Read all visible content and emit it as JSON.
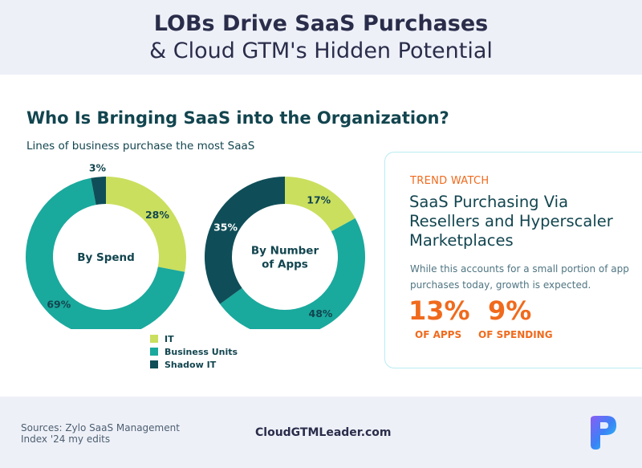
{
  "header": {
    "title_line1": "LOBs Drive SaaS Purchases",
    "title_line2": "& Cloud GTM's Hidden Potential"
  },
  "section": {
    "title": "Who Is Bringing SaaS into the Organization?",
    "subtitle": "Lines of business purchase the most SaaS"
  },
  "colors": {
    "it": "#cadf5e",
    "business_units": "#1aa99d",
    "shadow_it": "#0f4e58",
    "accent": "#f06a1d"
  },
  "chart_data": [
    {
      "type": "pie",
      "title": "By Spend",
      "categories": [
        "IT",
        "Business Units",
        "Shadow IT"
      ],
      "values": [
        28,
        69,
        3
      ],
      "labels": [
        "28%",
        "69%",
        "3%"
      ]
    },
    {
      "type": "pie",
      "title": "By Number of Apps",
      "categories": [
        "IT",
        "Business Units",
        "Shadow IT"
      ],
      "values": [
        17,
        48,
        35
      ],
      "labels": [
        "17%",
        "48%",
        "35%"
      ]
    }
  ],
  "legend": {
    "items": [
      {
        "label": "IT",
        "color": "#cadf5e"
      },
      {
        "label": "Business Units",
        "color": "#1aa99d"
      },
      {
        "label": "Shadow IT",
        "color": "#0f4e58"
      }
    ]
  },
  "trend": {
    "kicker": "TREND WATCH",
    "title": "SaaS Purchasing Via Resellers and Hyperscaler Marketplaces",
    "description": "While this accounts for a small portion of app purchases today, growth is expected.",
    "stats": [
      {
        "value": "13%",
        "label": "OF APPS"
      },
      {
        "value": "9%",
        "label": "OF SPENDING"
      }
    ]
  },
  "footer": {
    "sources": "Sources: Zylo SaaS Management Index '24 my edits",
    "site": "CloudGTMLeader.com"
  }
}
